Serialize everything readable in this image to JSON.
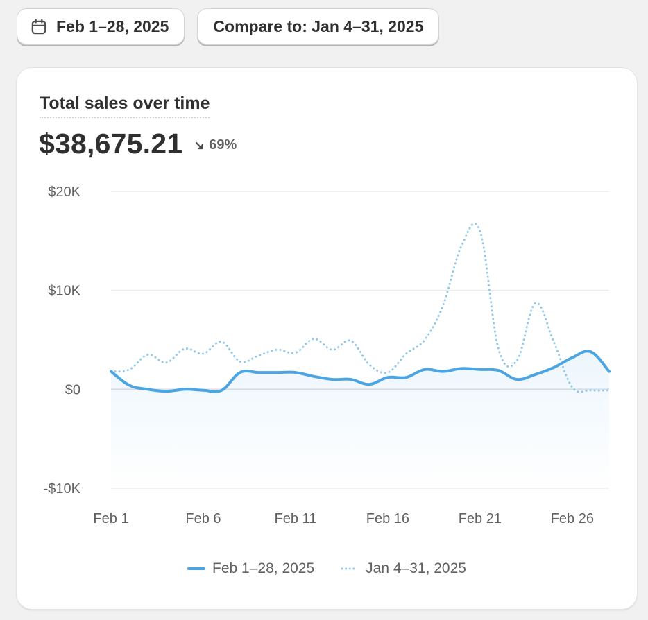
{
  "toolbar": {
    "date_range_label": "Feb 1–28, 2025",
    "compare_label": "Compare to: Jan 4–31, 2025"
  },
  "card": {
    "title": "Total sales over time",
    "value": "$38,675.21",
    "change": "69%",
    "change_direction": "down"
  },
  "legend": {
    "current": "Feb 1–28, 2025",
    "previous": "Jan 4–31, 2025"
  },
  "colors": {
    "current": "#4ba5e2",
    "previous": "#91c9ea",
    "grid": "#ebebeb"
  },
  "chart_data": {
    "type": "line",
    "title": "Total sales over time",
    "x": [
      "Feb 1",
      "Feb 2",
      "Feb 3",
      "Feb 4",
      "Feb 5",
      "Feb 6",
      "Feb 7",
      "Feb 8",
      "Feb 9",
      "Feb 10",
      "Feb 11",
      "Feb 12",
      "Feb 13",
      "Feb 14",
      "Feb 15",
      "Feb 16",
      "Feb 17",
      "Feb 18",
      "Feb 19",
      "Feb 20",
      "Feb 21",
      "Feb 22",
      "Feb 23",
      "Feb 24",
      "Feb 25",
      "Feb 26",
      "Feb 27",
      "Feb 28"
    ],
    "xticks": [
      "Feb 1",
      "Feb 6",
      "Feb 11",
      "Feb 16",
      "Feb 21",
      "Feb 26"
    ],
    "yticks": [
      20000,
      10000,
      0,
      -10000
    ],
    "ytick_labels": [
      "$20K",
      "$10K",
      "$0",
      "-$10K"
    ],
    "ylim": [
      -10000,
      20000
    ],
    "series": [
      {
        "name": "Feb 1–28, 2025",
        "style": "solid",
        "values": [
          1800,
          400,
          0,
          -200,
          0,
          -100,
          -100,
          1700,
          1700,
          1700,
          1700,
          1300,
          1000,
          1000,
          500,
          1200,
          1200,
          2000,
          1800,
          2100,
          2000,
          1900,
          1000,
          1500,
          2200,
          3200,
          3800,
          1800
        ]
      },
      {
        "name": "Jan 4–31, 2025",
        "style": "dotted",
        "values": [
          1800,
          2000,
          3500,
          2700,
          4100,
          3600,
          4800,
          2800,
          3400,
          4000,
          3700,
          5100,
          4000,
          4900,
          2500,
          1700,
          3600,
          5000,
          8500,
          14500,
          16000,
          4100,
          2900,
          8700,
          4800,
          200,
          -100,
          -100
        ]
      }
    ],
    "grid": true,
    "legend_position": "bottom-center"
  }
}
